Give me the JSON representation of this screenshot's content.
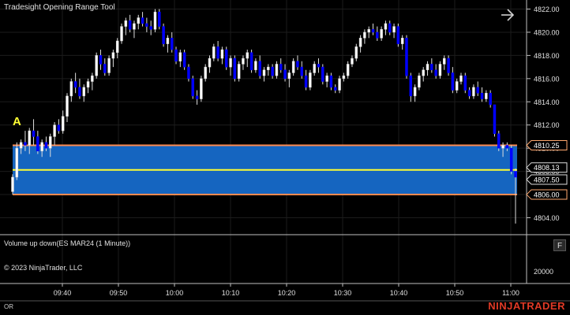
{
  "window": {
    "title": "Tradesight Opening Range Tool",
    "copyright": "© 2023 NinjaTrader, LLC",
    "status_left": "OR",
    "logo": "NINJATRADER",
    "f_button": "F"
  },
  "indicator_panel": {
    "title": "Volume up down(ES MAR24 (1 Minute))",
    "axis_label": "20000"
  },
  "price_axis": {
    "ticks": [
      "4822.00",
      "4820.00",
      "4818.00",
      "4816.00",
      "4814.00",
      "4812.00",
      "4810.00",
      "4808.00",
      "4806.00",
      "4804.00"
    ],
    "tick_values": [
      4822,
      4820,
      4818,
      4816,
      4814,
      4812,
      4810,
      4808,
      4806,
      4804
    ],
    "markers": [
      {
        "label": "4810.25",
        "value": 4810.25,
        "color": "#ffa86e"
      },
      {
        "label": "4808.13",
        "value": 4808.13,
        "color": "#dddddd"
      },
      {
        "label": "4807.50",
        "value": 4807.5,
        "color": "#dddddd"
      },
      {
        "label": "4806.00",
        "value": 4806.0,
        "color": "#ffa86e"
      }
    ]
  },
  "time_axis": {
    "labels": [
      "09:40",
      "09:50",
      "10:00",
      "10:10",
      "10:20",
      "10:30",
      "10:40",
      "10:50",
      "11:00"
    ]
  },
  "opening_range": {
    "label": "A",
    "high": 4810.25,
    "low": 4806.0,
    "mid": 4808.13,
    "fill_color": "#1565c0",
    "border_color": "#ff8a50",
    "mid_color": "#ffff33"
  },
  "colors": {
    "up": "#ffffff",
    "down": "#0000ff",
    "background": "#000000",
    "grid": "#1c1c1c"
  },
  "chart_data": {
    "type": "candlestick",
    "title": "Tradesight Opening Range Tool",
    "ylim": [
      4802.9,
      4822.6
    ],
    "x_labels": [
      "09:40",
      "09:50",
      "10:00",
      "10:10",
      "10:20",
      "10:30",
      "10:40",
      "10:50",
      "11:00"
    ],
    "candles": [
      [
        4806.25,
        4807.75,
        4806.0,
        4807.5
      ],
      [
        4807.5,
        4810.5,
        4807.25,
        4810.0
      ],
      [
        4810.0,
        4810.75,
        4809.5,
        4810.5
      ],
      [
        4810.5,
        4811.5,
        4809.75,
        4810.25
      ],
      [
        4810.25,
        4811.75,
        4809.5,
        4811.5
      ],
      [
        4811.5,
        4812.5,
        4810.25,
        4811.0
      ],
      [
        4811.0,
        4811.5,
        4809.5,
        4809.75
      ],
      [
        4809.75,
        4810.75,
        4809.25,
        4810.5
      ],
      [
        4810.5,
        4811.0,
        4809.75,
        4810.0
      ],
      [
        4810.0,
        4811.25,
        4809.25,
        4811.0
      ],
      [
        4811.0,
        4812.25,
        4810.25,
        4812.0
      ],
      [
        4812.0,
        4812.5,
        4811.25,
        4811.5
      ],
      [
        4811.5,
        4813.25,
        4811.25,
        4812.75
      ],
      [
        4812.75,
        4814.75,
        4812.25,
        4814.5
      ],
      [
        4814.5,
        4816.0,
        4814.0,
        4815.75
      ],
      [
        4815.75,
        4816.5,
        4814.75,
        4815.25
      ],
      [
        4815.25,
        4816.0,
        4814.25,
        4814.5
      ],
      [
        4814.5,
        4815.5,
        4814.0,
        4815.25
      ],
      [
        4815.25,
        4816.0,
        4814.75,
        4815.75
      ],
      [
        4815.75,
        4816.5,
        4815.0,
        4816.25
      ],
      [
        4816.25,
        4818.25,
        4816.0,
        4818.0
      ],
      [
        4818.0,
        4818.5,
        4816.75,
        4817.25
      ],
      [
        4817.25,
        4817.75,
        4816.25,
        4816.5
      ],
      [
        4816.5,
        4818.0,
        4816.25,
        4817.75
      ],
      [
        4817.75,
        4818.5,
        4817.0,
        4818.25
      ],
      [
        4818.25,
        4819.5,
        4817.75,
        4819.25
      ],
      [
        4819.25,
        4820.75,
        4819.0,
        4820.5
      ],
      [
        4820.5,
        4821.25,
        4819.75,
        4821.0
      ],
      [
        4821.0,
        4821.5,
        4820.0,
        4820.25
      ],
      [
        4820.25,
        4821.0,
        4819.5,
        4820.75
      ],
      [
        4820.75,
        4821.5,
        4820.25,
        4821.25
      ],
      [
        4821.25,
        4821.75,
        4820.5,
        4820.75
      ],
      [
        4820.75,
        4821.25,
        4820.0,
        4820.5
      ],
      [
        4820.5,
        4821.0,
        4819.75,
        4820.25
      ],
      [
        4820.25,
        4822.0,
        4820.0,
        4821.75
      ],
      [
        4821.75,
        4822.0,
        4820.25,
        4820.5
      ],
      [
        4820.5,
        4820.75,
        4818.75,
        4819.0
      ],
      [
        4819.0,
        4819.75,
        4818.25,
        4819.5
      ],
      [
        4819.5,
        4820.0,
        4818.25,
        4818.5
      ],
      [
        4818.5,
        4818.75,
        4817.25,
        4817.5
      ],
      [
        4817.5,
        4818.5,
        4817.0,
        4818.25
      ],
      [
        4818.25,
        4818.5,
        4816.75,
        4817.0
      ],
      [
        4817.0,
        4817.25,
        4815.75,
        4816.0
      ],
      [
        4816.0,
        4816.25,
        4814.25,
        4814.5
      ],
      [
        4814.5,
        4815.0,
        4813.75,
        4814.25
      ],
      [
        4814.25,
        4816.25,
        4814.0,
        4816.0
      ],
      [
        4816.0,
        4817.25,
        4815.75,
        4817.0
      ],
      [
        4817.0,
        4818.0,
        4816.5,
        4817.75
      ],
      [
        4817.75,
        4819.0,
        4817.5,
        4818.75
      ],
      [
        4818.75,
        4819.25,
        4817.5,
        4817.75
      ],
      [
        4817.75,
        4818.75,
        4817.25,
        4818.5
      ],
      [
        4818.5,
        4818.75,
        4816.75,
        4817.0
      ],
      [
        4817.0,
        4818.0,
        4816.25,
        4817.75
      ],
      [
        4817.75,
        4818.0,
        4815.75,
        4816.0
      ],
      [
        4816.0,
        4817.5,
        4815.75,
        4817.25
      ],
      [
        4817.25,
        4818.0,
        4816.75,
        4817.75
      ],
      [
        4817.75,
        4818.5,
        4817.0,
        4818.25
      ],
      [
        4818.25,
        4818.5,
        4816.5,
        4816.75
      ],
      [
        4816.75,
        4817.75,
        4816.5,
        4817.5
      ],
      [
        4817.5,
        4818.0,
        4816.0,
        4816.25
      ],
      [
        4816.25,
        4817.0,
        4815.75,
        4816.75
      ],
      [
        4816.75,
        4817.25,
        4816.25,
        4817.0
      ],
      [
        4817.0,
        4817.25,
        4816.0,
        4816.25
      ],
      [
        4816.25,
        4817.5,
        4816.0,
        4817.25
      ],
      [
        4817.25,
        4817.75,
        4816.5,
        4816.75
      ],
      [
        4816.75,
        4817.25,
        4815.75,
        4816.0
      ],
      [
        4816.0,
        4816.75,
        4815.25,
        4816.5
      ],
      [
        4816.5,
        4817.75,
        4816.25,
        4817.5
      ],
      [
        4817.5,
        4818.0,
        4816.75,
        4817.0
      ],
      [
        4817.0,
        4817.5,
        4816.0,
        4816.25
      ],
      [
        4816.25,
        4816.75,
        4815.0,
        4815.25
      ],
      [
        4815.25,
        4816.75,
        4815.0,
        4816.5
      ],
      [
        4816.5,
        4817.5,
        4816.25,
        4817.25
      ],
      [
        4817.25,
        4817.75,
        4816.5,
        4817.0
      ],
      [
        4817.0,
        4817.25,
        4815.5,
        4815.75
      ],
      [
        4815.75,
        4816.5,
        4815.25,
        4816.25
      ],
      [
        4816.25,
        4816.5,
        4815.0,
        4815.25
      ],
      [
        4815.25,
        4815.5,
        4814.75,
        4815.0
      ],
      [
        4815.0,
        4816.25,
        4814.75,
        4816.0
      ],
      [
        4816.0,
        4816.5,
        4815.75,
        4816.25
      ],
      [
        4816.25,
        4817.5,
        4816.0,
        4817.25
      ],
      [
        4817.25,
        4818.0,
        4817.0,
        4817.75
      ],
      [
        4817.75,
        4819.0,
        4817.5,
        4818.75
      ],
      [
        4818.75,
        4819.75,
        4818.25,
        4819.5
      ],
      [
        4819.5,
        4820.25,
        4819.0,
        4820.0
      ],
      [
        4820.0,
        4820.5,
        4819.5,
        4820.25
      ],
      [
        4820.25,
        4820.75,
        4819.75,
        4820.0
      ],
      [
        4820.0,
        4820.5,
        4819.25,
        4819.5
      ],
      [
        4819.5,
        4820.5,
        4819.25,
        4820.25
      ],
      [
        4820.25,
        4821.0,
        4819.75,
        4820.75
      ],
      [
        4820.75,
        4821.0,
        4819.75,
        4820.0
      ],
      [
        4820.0,
        4820.75,
        4819.5,
        4820.5
      ],
      [
        4820.5,
        4820.75,
        4818.75,
        4819.0
      ],
      [
        4819.0,
        4819.75,
        4818.5,
        4819.5
      ],
      [
        4819.5,
        4819.75,
        4816.0,
        4816.25
      ],
      [
        4816.25,
        4816.5,
        4814.0,
        4814.5
      ],
      [
        4814.5,
        4815.5,
        4814.0,
        4815.25
      ],
      [
        4815.25,
        4816.5,
        4815.0,
        4816.25
      ],
      [
        4816.25,
        4817.0,
        4815.75,
        4816.75
      ],
      [
        4816.75,
        4817.5,
        4816.25,
        4817.25
      ],
      [
        4817.25,
        4817.75,
        4816.5,
        4816.75
      ],
      [
        4816.75,
        4817.25,
        4816.0,
        4816.25
      ],
      [
        4816.25,
        4817.5,
        4816.0,
        4817.25
      ],
      [
        4817.25,
        4818.0,
        4816.75,
        4817.75
      ],
      [
        4817.75,
        4818.0,
        4816.25,
        4816.5
      ],
      [
        4816.5,
        4817.0,
        4814.75,
        4815.0
      ],
      [
        4815.0,
        4816.0,
        4814.75,
        4815.75
      ],
      [
        4815.75,
        4816.5,
        4815.5,
        4816.25
      ],
      [
        4816.25,
        4816.5,
        4814.75,
        4815.0
      ],
      [
        4815.0,
        4815.25,
        4814.25,
        4814.5
      ],
      [
        4814.5,
        4815.5,
        4814.25,
        4815.25
      ],
      [
        4815.25,
        4815.75,
        4814.5,
        4814.75
      ],
      [
        4814.75,
        4815.25,
        4814.0,
        4814.25
      ],
      [
        4814.25,
        4815.0,
        4814.0,
        4814.75
      ],
      [
        4814.75,
        4815.0,
        4813.5,
        4813.75
      ],
      [
        4813.75,
        4813.75,
        4811.0,
        4811.25
      ],
      [
        4811.25,
        4811.5,
        4809.75,
        4810.0
      ],
      [
        4810.0,
        4810.5,
        4809.25,
        4810.25
      ],
      [
        4810.25,
        4810.5,
        4809.75,
        4810.0
      ],
      [
        4810.0,
        4810.25,
        4807.75,
        4808.0
      ],
      [
        4808.0,
        4808.25,
        4803.5,
        4807.5
      ]
    ]
  }
}
